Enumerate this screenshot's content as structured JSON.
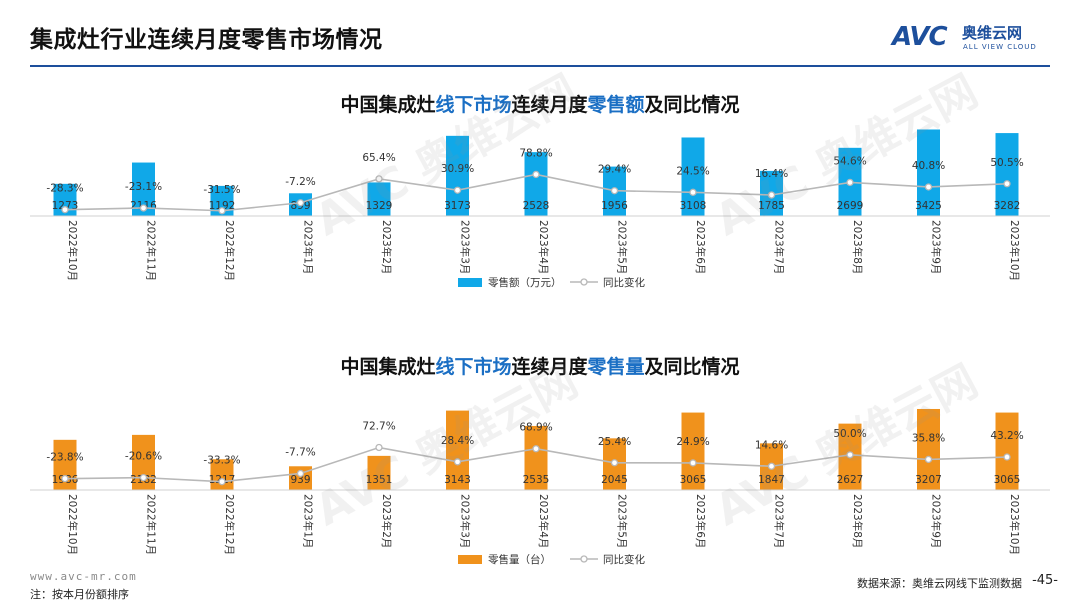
{
  "page": {
    "title": "集成灶行业连续月度零售市场情况",
    "logo_mark": "AVC",
    "logo_cn": "奥维云网",
    "logo_en": "ALL VIEW CLOUD",
    "url": "www.avc-mr.com",
    "note": "注：按本月份额排序",
    "source": "数据来源：奥维云网线下监测数据",
    "page_number": "-45-",
    "watermark_text": "AVC 奥维云网",
    "brand_color": "#1d4f9c"
  },
  "chart_data": [
    {
      "type": "bar",
      "title_parts": [
        "中国集成灶",
        "线下市场",
        "连续月度",
        "零售额",
        "及同比情况"
      ],
      "categories": [
        "2022年10月",
        "2022年11月",
        "2022年12月",
        "2023年1月",
        "2023年2月",
        "2023年3月",
        "2023年4月",
        "2023年5月",
        "2023年6月",
        "2023年7月",
        "2023年8月",
        "2023年9月",
        "2023年10月"
      ],
      "series": [
        {
          "name": "零售额（万元）",
          "kind": "bar",
          "color": "#10a8e8",
          "values": [
            1273,
            2116,
            1192,
            899,
            1329,
            3173,
            2528,
            1956,
            3108,
            1785,
            2699,
            3425,
            3282
          ]
        },
        {
          "name": "同比变化",
          "kind": "line",
          "color": "#b8b8b8",
          "values": [
            -28.3,
            -23.1,
            -31.5,
            -7.2,
            65.4,
            30.9,
            78.8,
            29.4,
            24.5,
            16.4,
            54.6,
            40.8,
            50.5
          ],
          "labels": [
            "-28.3%",
            "-23.1%",
            "-31.5%",
            "-7.2%",
            "65.4%",
            "30.9%",
            "78.8%",
            "29.4%",
            "24.5%",
            "16.4%",
            "54.6%",
            "40.8%",
            "50.5%"
          ]
        }
      ],
      "bar_range": [
        0,
        3800
      ],
      "line_range": [
        -90,
        220
      ]
    },
    {
      "type": "bar",
      "title_parts": [
        "中国集成灶",
        "线下市场",
        "连续月度",
        "零售量",
        "及同比情况"
      ],
      "categories": [
        "2022年10月",
        "2022年11月",
        "2022年12月",
        "2023年1月",
        "2023年2月",
        "2023年3月",
        "2023年4月",
        "2023年5月",
        "2023年6月",
        "2023年7月",
        "2023年8月",
        "2023年9月",
        "2023年10月"
      ],
      "series": [
        {
          "name": "零售量（台）",
          "kind": "bar",
          "color": "#f0921c",
          "values": [
            1986,
            2182,
            1217,
            939,
            1351,
            3143,
            2535,
            2045,
            3065,
            1847,
            2627,
            3207,
            3065
          ]
        },
        {
          "name": "同比变化",
          "kind": "line",
          "color": "#b8b8b8",
          "values": [
            -23.8,
            -20.6,
            -33.3,
            -7.7,
            72.7,
            28.4,
            68.9,
            25.4,
            24.9,
            14.6,
            50.0,
            35.8,
            43.2
          ],
          "labels": [
            "-23.8%",
            "-20.6%",
            "-33.3%",
            "-7.7%",
            "72.7%",
            "28.4%",
            "68.9%",
            "25.4%",
            "24.9%",
            "14.6%",
            "50.0%",
            "35.8%",
            "43.2%"
          ]
        }
      ],
      "bar_range": [
        0,
        3800
      ],
      "line_range": [
        -90,
        220
      ]
    }
  ]
}
